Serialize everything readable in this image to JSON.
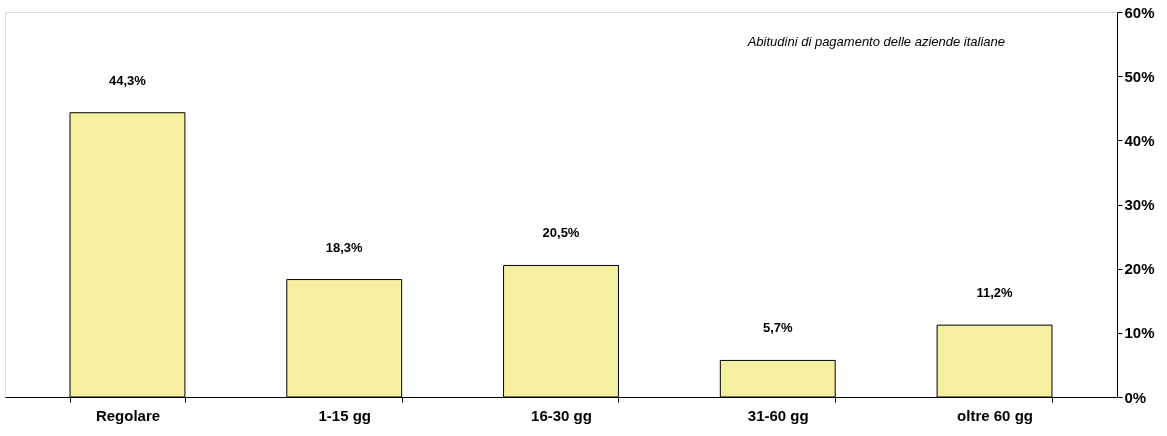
{
  "chart_data": {
    "type": "bar",
    "annotations": [
      "Abitudini di pagamento delle aziende italiane"
    ],
    "categories": [
      "Regolare",
      "1-15 gg",
      "16-30 gg",
      "31-60 gg",
      "oltre 60 gg"
    ],
    "values": [
      44.3,
      18.3,
      20.5,
      5.7,
      11.2
    ],
    "value_labels": [
      "44,3%",
      "18,3%",
      "20,5%",
      "5,7%",
      "11,2%"
    ],
    "color": "#f5f0a0",
    "ylim": [
      0,
      60
    ],
    "yticks": [
      {
        "value": 0,
        "label": "0%"
      },
      {
        "value": 10,
        "label": "10%"
      },
      {
        "value": 20,
        "label": "20%"
      },
      {
        "value": 30,
        "label": "30%"
      },
      {
        "value": 40,
        "label": "40%"
      },
      {
        "value": 50,
        "label": "50%"
      },
      {
        "value": 60,
        "label": "60%"
      }
    ],
    "grid": false
  }
}
